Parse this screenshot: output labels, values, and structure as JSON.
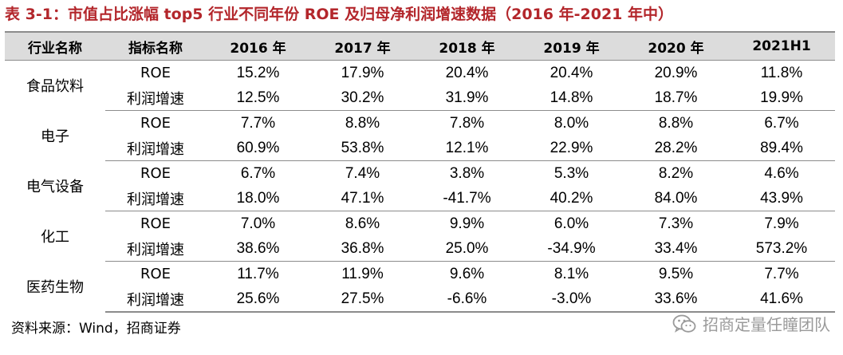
{
  "title": "表 3-1：市值占比涨幅 top5 行业不同年份 ROE 及归母净利润增速数据（2016 年-2021 年中）",
  "headers": [
    "行业名称",
    "指标名称",
    "2016 年",
    "2017 年",
    "2018 年",
    "2019 年",
    "2020 年",
    "2021H1"
  ],
  "groups": [
    {
      "industry": "食品饮料",
      "rows": [
        {
          "indicator": "ROE",
          "values": [
            "15.2%",
            "17.9%",
            "20.4%",
            "20.4%",
            "20.9%",
            "11.8%"
          ]
        },
        {
          "indicator": "利润增速",
          "values": [
            "12.5%",
            "30.2%",
            "31.9%",
            "14.8%",
            "18.7%",
            "19.9%"
          ]
        }
      ]
    },
    {
      "industry": "电子",
      "rows": [
        {
          "indicator": "ROE",
          "values": [
            "7.7%",
            "8.8%",
            "7.8%",
            "8.0%",
            "8.8%",
            "6.7%"
          ]
        },
        {
          "indicator": "利润增速",
          "values": [
            "60.9%",
            "53.8%",
            "12.1%",
            "22.9%",
            "28.2%",
            "89.4%"
          ]
        }
      ]
    },
    {
      "industry": "电气设备",
      "rows": [
        {
          "indicator": "ROE",
          "values": [
            "6.7%",
            "7.4%",
            "3.8%",
            "5.3%",
            "8.2%",
            "4.6%"
          ]
        },
        {
          "indicator": "利润增速",
          "values": [
            "18.0%",
            "47.1%",
            "-41.7%",
            "40.2%",
            "84.0%",
            "43.9%"
          ]
        }
      ]
    },
    {
      "industry": "化工",
      "rows": [
        {
          "indicator": "ROE",
          "values": [
            "7.0%",
            "8.6%",
            "9.9%",
            "6.0%",
            "7.3%",
            "7.9%"
          ]
        },
        {
          "indicator": "利润增速",
          "values": [
            "38.6%",
            "36.8%",
            "25.0%",
            "-34.9%",
            "33.4%",
            "573.2%"
          ]
        }
      ]
    },
    {
      "industry": "医药生物",
      "rows": [
        {
          "indicator": "ROE",
          "values": [
            "11.7%",
            "11.9%",
            "9.6%",
            "8.1%",
            "9.5%",
            "7.7%"
          ]
        },
        {
          "indicator": "利润增速",
          "values": [
            "25.6%",
            "27.5%",
            "-6.6%",
            "-3.0%",
            "33.6%",
            "41.6%"
          ]
        }
      ]
    }
  ],
  "source": "资料来源：Wind，招商证券",
  "watermark": "招商定量任瞳团队",
  "colors": {
    "title": "#b3262b",
    "header_bg": "#dcdcdc",
    "rule": "#8c8c8c",
    "watermark": "#9a9a9a"
  },
  "icons": {
    "watermark": "wechat-icon"
  }
}
